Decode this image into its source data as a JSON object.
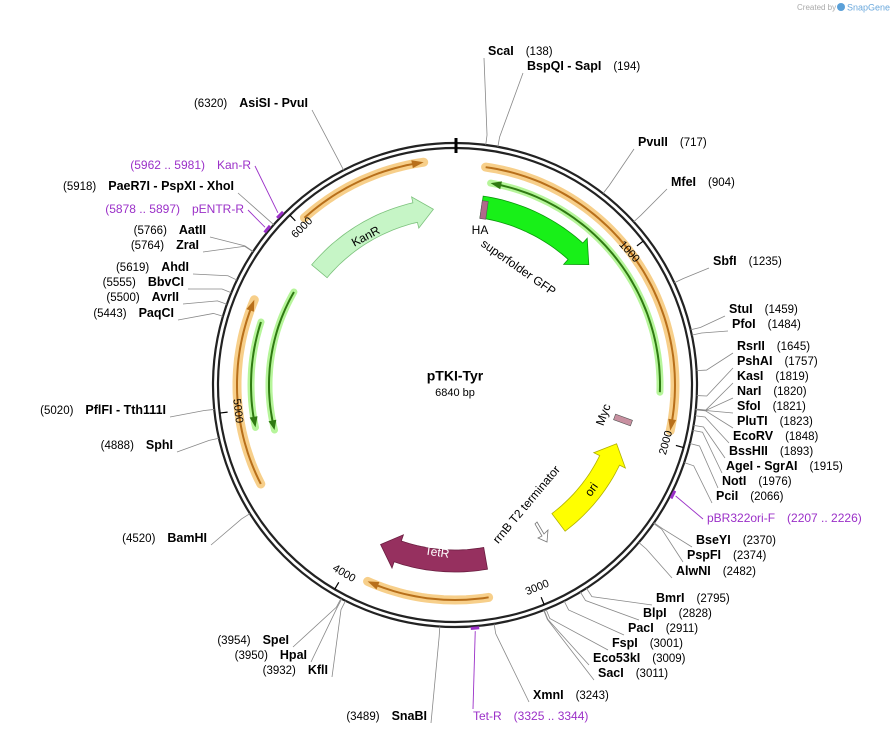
{
  "credit": "Created by",
  "brand": "SnapGene",
  "plasmid": {
    "name": "pTKI-Tyr",
    "length": "6840 bp"
  },
  "enzymes": [
    {
      "label": "ScaI",
      "site": "(138)"
    },
    {
      "label": "BspQI - SapI",
      "site": "(194)"
    },
    {
      "label": "PvuII",
      "site": "(717)"
    },
    {
      "label": "MfeI",
      "site": "(904)"
    },
    {
      "label": "SbfI",
      "site": "(1235)"
    },
    {
      "label": "StuI",
      "site": "(1459)"
    },
    {
      "label": "PfoI",
      "site": "(1484)"
    },
    {
      "label": "RsrII",
      "site": "(1645)"
    },
    {
      "label": "PshAI",
      "site": "(1757)"
    },
    {
      "label": "KasI",
      "site": "(1819)"
    },
    {
      "label": "NarI",
      "site": "(1820)"
    },
    {
      "label": "SfoI",
      "site": "(1821)"
    },
    {
      "label": "PluTI",
      "site": "(1823)"
    },
    {
      "label": "EcoRV",
      "site": "(1848)"
    },
    {
      "label": "BssHII",
      "site": "(1893)"
    },
    {
      "label": "AgeI - SgrAI",
      "site": "(1915)"
    },
    {
      "label": "NotI",
      "site": "(1976)"
    },
    {
      "label": "PciI",
      "site": "(2066)"
    },
    {
      "label": "BseYI",
      "site": "(2370)"
    },
    {
      "label": "PspFI",
      "site": "(2374)"
    },
    {
      "label": "AlwNI",
      "site": "(2482)"
    },
    {
      "label": "BmrI",
      "site": "(2795)"
    },
    {
      "label": "BlpI",
      "site": "(2828)"
    },
    {
      "label": "PacI",
      "site": "(2911)"
    },
    {
      "label": "FspI",
      "site": "(3001)"
    },
    {
      "label": "Eco53kI",
      "site": "(3009)"
    },
    {
      "label": "SacI",
      "site": "(3011)"
    },
    {
      "label": "XmnI",
      "site": "(3243)"
    },
    {
      "label": "SnaBI",
      "site": "(3489)"
    },
    {
      "label": "KflI",
      "site": "(3932)"
    },
    {
      "label": "HpaI",
      "site": "(3950)"
    },
    {
      "label": "SpeI",
      "site": "(3954)"
    },
    {
      "label": "BamHI",
      "site": "(4520)"
    },
    {
      "label": "SphI",
      "site": "(4888)"
    },
    {
      "label": "PflFI - Tth111I",
      "site": "(5020)"
    },
    {
      "label": "PaqCI",
      "site": "(5443)"
    },
    {
      "label": "AvrII",
      "site": "(5500)"
    },
    {
      "label": "BbvCI",
      "site": "(5555)"
    },
    {
      "label": "AhdI",
      "site": "(5619)"
    },
    {
      "label": "ZraI",
      "site": "(5764)"
    },
    {
      "label": "AatII",
      "site": "(5766)"
    },
    {
      "label": "PaeR7I - PspXI - XhoI",
      "site": "(5918)"
    },
    {
      "label": "AsiSI - PvuI",
      "site": "(6320)"
    }
  ],
  "primers": [
    {
      "label": "Kan-R",
      "range": "(5962 .. 5981)"
    },
    {
      "label": "pENTR-R",
      "range": "(5878 .. 5897)"
    },
    {
      "label": "pBR322ori-F",
      "range": "(2207 .. 2226)"
    },
    {
      "label": "Tet-R",
      "range": "(3325 .. 3344)"
    }
  ],
  "features": [
    "KanR",
    "HA",
    "superfolder GFP",
    "Myc",
    "ori",
    "rrnB T2 terminator",
    "TetR"
  ],
  "ticks": [
    "1000",
    "2000",
    "3000",
    "4000",
    "5000",
    "6000"
  ]
}
